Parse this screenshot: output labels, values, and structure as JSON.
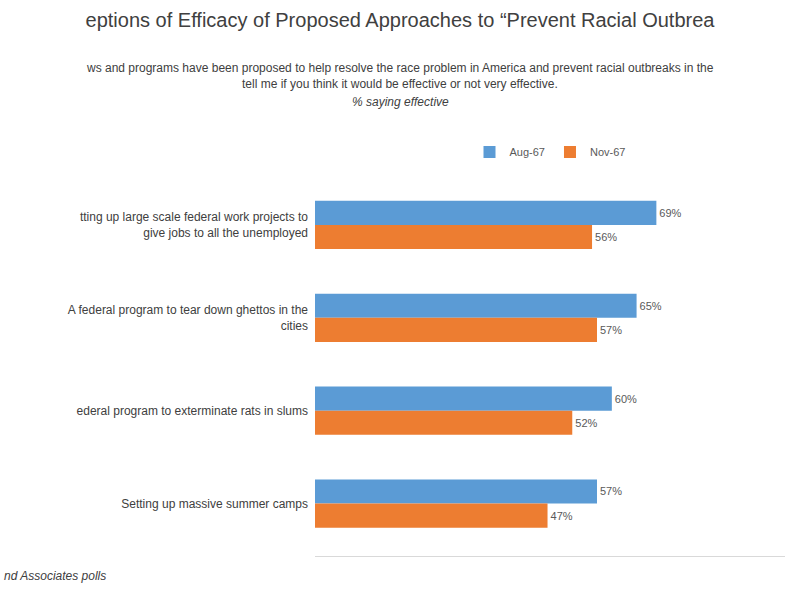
{
  "chart_data": {
    "type": "bar",
    "orientation": "horizontal",
    "title": "eptions of Efficacy of Proposed Approaches to “Prevent Racial Outbrea",
    "subtitle": [
      "ws and programs have been proposed to help resolve the race problem in America and prevent racial outbreaks in the",
      "tell me if you think it would be effective or not very effective."
    ],
    "annotations": [
      "% saying effective",
      "nd Associates polls"
    ],
    "categories": [
      "tting up large scale federal work projects to give jobs to all the unemployed",
      "A federal program to tear down ghettos in the cities",
      "ederal program to exterminate rats in slums",
      "Setting up massive summer camps"
    ],
    "series": [
      {
        "name": "Aug-67",
        "color": "#5b9bd5",
        "values": [
          69,
          65,
          60,
          57
        ],
        "value_labels": [
          "69%",
          "65%",
          "60%",
          "57%"
        ]
      },
      {
        "name": "Nov-67",
        "color": "#ed7d31",
        "values": [
          56,
          57,
          52,
          47
        ],
        "value_labels": [
          "56%",
          "57%",
          "52%",
          "47%"
        ]
      }
    ],
    "xlim": [
      0,
      95
    ],
    "xticks": [],
    "grid": false,
    "legend": "top",
    "data_labels": true,
    "tick_labels": "y"
  }
}
